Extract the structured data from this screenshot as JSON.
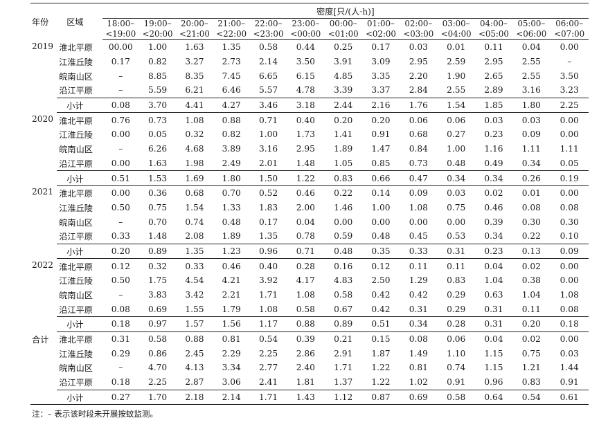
{
  "table": {
    "header": {
      "year": "年份",
      "region": "区域",
      "density": "密度[只/(人·h)]",
      "periods": [
        [
          "18:00–",
          "<19:00"
        ],
        [
          "19:00–",
          "<20:00"
        ],
        [
          "20:00–",
          "<21:00"
        ],
        [
          "21:00–",
          "<22:00"
        ],
        [
          "22:00–",
          "<23:00"
        ],
        [
          "23:00–",
          "<00:00"
        ],
        [
          "00:00–",
          "<01:00"
        ],
        [
          "01:00–",
          "<02:00"
        ],
        [
          "02:00–",
          "<03:00"
        ],
        [
          "03:00–",
          "<04:00"
        ],
        [
          "04:00–",
          "<05:00"
        ],
        [
          "05:00–",
          "<06:00"
        ],
        [
          "06:00–",
          "<07:00"
        ]
      ]
    },
    "groups": [
      {
        "year": "2019",
        "rows": [
          {
            "region": "淮北平原",
            "values": [
              "00.00",
              "1.00",
              "1.63",
              "1.35",
              "0.58",
              "0.44",
              "0.25",
              "0.17",
              "0.03",
              "0.01",
              "0.11",
              "0.04",
              "0.00"
            ]
          },
          {
            "region": "江淮丘陵",
            "values": [
              "0.17",
              "0.82",
              "3.27",
              "2.73",
              "2.14",
              "3.50",
              "3.91",
              "3.09",
              "2.95",
              "2.59",
              "2.95",
              "2.55",
              "–"
            ]
          },
          {
            "region": "皖南山区",
            "values": [
              "–",
              "8.85",
              "8.35",
              "7.45",
              "6.65",
              "6.15",
              "4.85",
              "3.35",
              "2.20",
              "1.90",
              "2.65",
              "2.55",
              "3.50"
            ]
          },
          {
            "region": "沿江平原",
            "values": [
              "–",
              "5.59",
              "6.21",
              "6.46",
              "5.57",
              "4.78",
              "3.39",
              "3.37",
              "2.84",
              "2.55",
              "2.89",
              "3.16",
              "3.23"
            ]
          }
        ],
        "subtotal": {
          "region": "小计",
          "values": [
            "0.08",
            "3.70",
            "4.41",
            "4.27",
            "3.46",
            "3.18",
            "2.44",
            "2.16",
            "1.76",
            "1.54",
            "1.85",
            "1.80",
            "2.25"
          ]
        }
      },
      {
        "year": "2020",
        "rows": [
          {
            "region": "淮北平原",
            "values": [
              "0.76",
              "0.73",
              "1.08",
              "0.88",
              "0.71",
              "0.40",
              "0.20",
              "0.20",
              "0.06",
              "0.06",
              "0.03",
              "0.03",
              "0.00"
            ]
          },
          {
            "region": "江淮丘陵",
            "values": [
              "0.00",
              "0.05",
              "0.32",
              "0.82",
              "1.00",
              "1.73",
              "1.41",
              "0.91",
              "0.68",
              "0.27",
              "0.23",
              "0.09",
              "0.00"
            ]
          },
          {
            "region": "皖南山区",
            "values": [
              "–",
              "6.26",
              "4.68",
              "3.89",
              "3.16",
              "2.95",
              "1.89",
              "1.47",
              "0.84",
              "1.00",
              "1.16",
              "1.11",
              "1.11"
            ]
          },
          {
            "region": "沿江平原",
            "values": [
              "0.00",
              "1.63",
              "1.98",
              "2.49",
              "2.01",
              "1.48",
              "1.05",
              "0.85",
              "0.73",
              "0.48",
              "0.49",
              "0.34",
              "0.05"
            ]
          }
        ],
        "subtotal": {
          "region": "小计",
          "values": [
            "0.51",
            "1.53",
            "1.69",
            "1.80",
            "1.50",
            "1.22",
            "0.83",
            "0.66",
            "0.47",
            "0.34",
            "0.34",
            "0.26",
            "0.19"
          ]
        }
      },
      {
        "year": "2021",
        "rows": [
          {
            "region": "淮北平原",
            "values": [
              "0.00",
              "0.36",
              "0.68",
              "0.70",
              "0.52",
              "0.46",
              "0.22",
              "0.14",
              "0.09",
              "0.03",
              "0.02",
              "0.01",
              "0.00"
            ]
          },
          {
            "region": "江淮丘陵",
            "values": [
              "0.50",
              "0.75",
              "1.54",
              "1.33",
              "1.83",
              "2.00",
              "1.46",
              "1.00",
              "1.08",
              "0.75",
              "0.46",
              "0.08",
              "0.08"
            ]
          },
          {
            "region": "皖南山区",
            "values": [
              "–",
              "0.70",
              "0.74",
              "0.48",
              "0.17",
              "0.04",
              "0.00",
              "0.00",
              "0.00",
              "0.00",
              "0.39",
              "0.30",
              "0.30"
            ]
          },
          {
            "region": "沿江平原",
            "values": [
              "0.33",
              "1.48",
              "2.08",
              "1.89",
              "1.35",
              "0.78",
              "0.59",
              "0.48",
              "0.45",
              "0.53",
              "0.34",
              "0.22",
              "0.10"
            ]
          }
        ],
        "subtotal": {
          "region": "小计",
          "values": [
            "0.20",
            "0.89",
            "1.35",
            "1.23",
            "0.96",
            "0.71",
            "0.48",
            "0.35",
            "0.33",
            "0.31",
            "0.23",
            "0.13",
            "0.09"
          ]
        }
      },
      {
        "year": "2022",
        "rows": [
          {
            "region": "淮北平原",
            "values": [
              "0.12",
              "0.32",
              "0.33",
              "0.46",
              "0.40",
              "0.28",
              "0.16",
              "0.12",
              "0.11",
              "0.11",
              "0.04",
              "0.02",
              "0.00"
            ]
          },
          {
            "region": "江淮丘陵",
            "values": [
              "0.50",
              "1.75",
              "4.54",
              "4.21",
              "3.92",
              "4.17",
              "4.83",
              "2.50",
              "1.29",
              "0.83",
              "1.04",
              "0.38",
              "0.00"
            ]
          },
          {
            "region": "皖南山区",
            "values": [
              "–",
              "3.83",
              "3.42",
              "2.21",
              "1.71",
              "1.08",
              "0.58",
              "0.42",
              "0.42",
              "0.29",
              "0.63",
              "1.04",
              "1.08"
            ]
          },
          {
            "region": "沿江平原",
            "values": [
              "0.08",
              "0.69",
              "1.55",
              "1.79",
              "1.08",
              "0.58",
              "0.67",
              "0.42",
              "0.31",
              "0.29",
              "0.31",
              "0.11",
              "0.08"
            ]
          }
        ],
        "subtotal": {
          "region": "小计",
          "values": [
            "0.18",
            "0.97",
            "1.57",
            "1.56",
            "1.17",
            "0.88",
            "0.89",
            "0.51",
            "0.34",
            "0.28",
            "0.31",
            "0.20",
            "0.18"
          ]
        }
      },
      {
        "year": "合计",
        "rows": [
          {
            "region": "淮北平原",
            "values": [
              "0.31",
              "0.58",
              "0.88",
              "0.81",
              "0.54",
              "0.39",
              "0.21",
              "0.15",
              "0.08",
              "0.06",
              "0.04",
              "0.02",
              "0.00"
            ]
          },
          {
            "region": "江淮丘陵",
            "values": [
              "0.29",
              "0.86",
              "2.45",
              "2.29",
              "2.25",
              "2.86",
              "2.91",
              "1.87",
              "1.49",
              "1.10",
              "1.15",
              "0.75",
              "0.03"
            ]
          },
          {
            "region": "皖南山区",
            "values": [
              "–",
              "4.70",
              "4.13",
              "3.34",
              "2.77",
              "2.40",
              "1.71",
              "1.22",
              "0.81",
              "0.74",
              "1.15",
              "1.21",
              "1.44"
            ]
          },
          {
            "region": "沿江平原",
            "values": [
              "0.18",
              "2.25",
              "2.87",
              "3.06",
              "2.41",
              "1.81",
              "1.37",
              "1.22",
              "1.02",
              "0.91",
              "0.96",
              "0.83",
              "0.91"
            ]
          }
        ],
        "subtotal": {
          "region": "小计",
          "values": [
            "0.27",
            "1.70",
            "2.18",
            "2.14",
            "1.71",
            "1.43",
            "1.12",
            "0.87",
            "0.69",
            "0.58",
            "0.64",
            "0.54",
            "0.61"
          ]
        }
      }
    ],
    "note": "注：– 表示该时段未开展按蚊监测。"
  }
}
